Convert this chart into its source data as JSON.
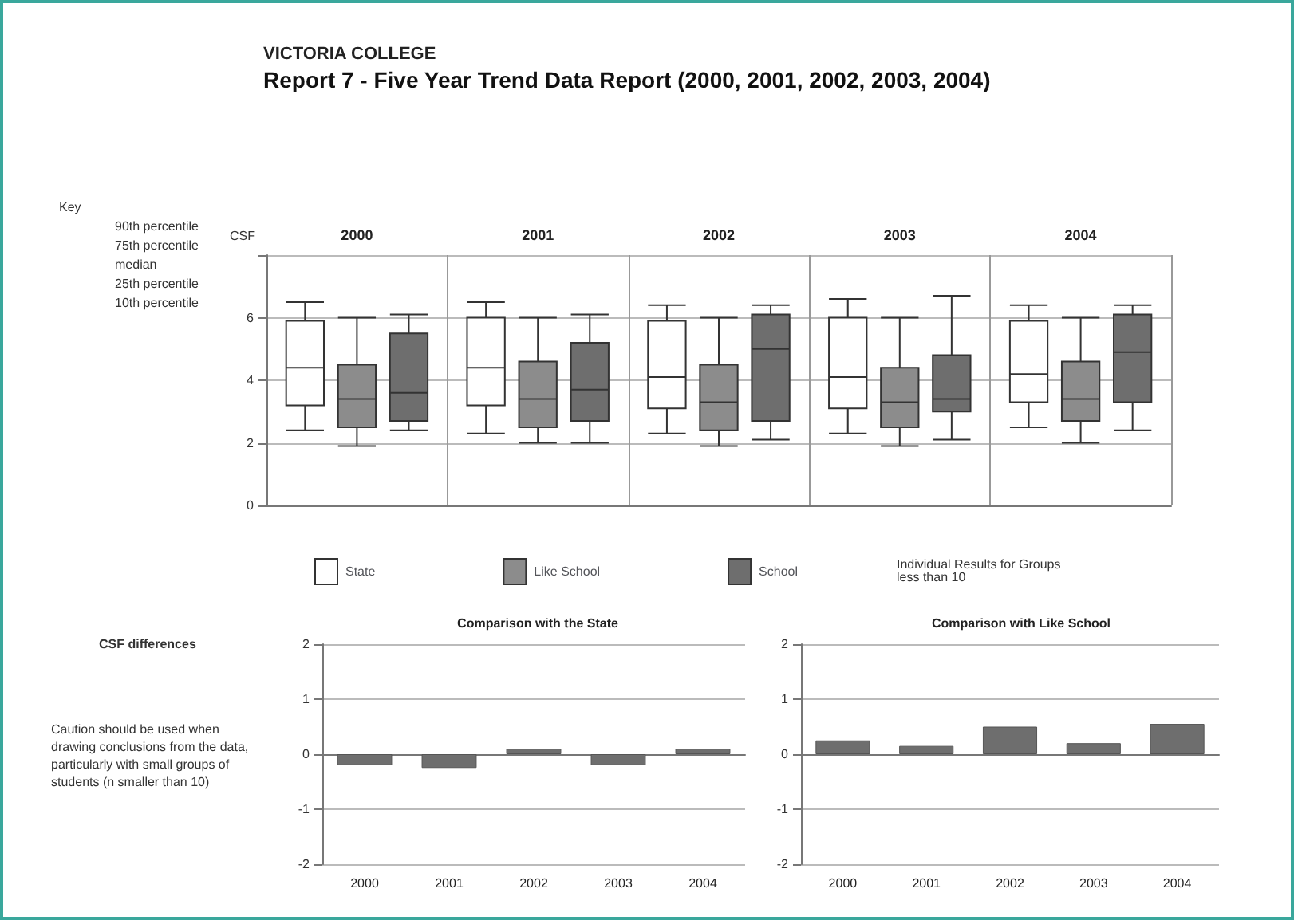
{
  "chart_data": [
    {
      "type": "box",
      "title": "Report 7 - Five Year Trend Data Report (2000, 2001, 2002, 2003, 2004)",
      "subtitle": "VICTORIA COLLEGE",
      "ylabel": "CSF",
      "categories": [
        "2000",
        "2001",
        "2002",
        "2003",
        "2004"
      ],
      "series": [
        {
          "name": "State",
          "color": "#ffffff",
          "boxes": [
            {
              "low": 2.4,
              "q1": 3.2,
              "median": 4.4,
              "q3": 5.9,
              "high": 6.5
            },
            {
              "low": 2.3,
              "q1": 3.2,
              "median": 4.4,
              "q3": 6.0,
              "high": 6.5
            },
            {
              "low": 2.3,
              "q1": 3.1,
              "median": 4.1,
              "q3": 5.9,
              "high": 6.4
            },
            {
              "low": 2.3,
              "q1": 3.1,
              "median": 4.1,
              "q3": 6.0,
              "high": 6.6
            },
            {
              "low": 2.5,
              "q1": 3.3,
              "median": 4.2,
              "q3": 5.9,
              "high": 6.4
            }
          ]
        },
        {
          "name": "Like School",
          "color": "#8c8c8c",
          "boxes": [
            {
              "low": 1.9,
              "q1": 2.5,
              "median": 3.4,
              "q3": 4.5,
              "high": 6.0
            },
            {
              "low": 2.0,
              "q1": 2.5,
              "median": 3.4,
              "q3": 4.6,
              "high": 6.0
            },
            {
              "low": 1.9,
              "q1": 2.4,
              "median": 3.3,
              "q3": 4.5,
              "high": 6.0
            },
            {
              "low": 1.9,
              "q1": 2.5,
              "median": 3.3,
              "q3": 4.4,
              "high": 6.0
            },
            {
              "low": 2.0,
              "q1": 2.7,
              "median": 3.4,
              "q3": 4.6,
              "high": 6.0
            }
          ]
        },
        {
          "name": "School",
          "color": "#6e6e6e",
          "boxes": [
            {
              "low": 2.4,
              "q1": 2.7,
              "median": 3.6,
              "q3": 5.5,
              "high": 6.1
            },
            {
              "low": 2.0,
              "q1": 2.7,
              "median": 3.7,
              "q3": 5.2,
              "high": 6.1
            },
            {
              "low": 2.1,
              "q1": 2.7,
              "median": 5.0,
              "q3": 6.1,
              "high": 6.4
            },
            {
              "low": 2.1,
              "q1": 3.0,
              "median": 3.4,
              "q3": 4.8,
              "high": 6.7
            },
            {
              "low": 2.4,
              "q1": 3.3,
              "median": 4.9,
              "q3": 6.1,
              "high": 6.4
            }
          ]
        }
      ],
      "ylim": [
        0,
        8
      ],
      "yticks": [
        0,
        2,
        4,
        6
      ],
      "grid": "y",
      "legend": "bottom",
      "annotations": [
        "Key",
        "90th percentile",
        "75th percentile",
        "median",
        "25th percentile",
        "10th percentile",
        "Individual Results for Groups less than 10"
      ]
    },
    {
      "type": "bar",
      "title": "Comparison with the State",
      "ylabel": "CSF differences",
      "categories": [
        "2000",
        "2001",
        "2002",
        "2003",
        "2004"
      ],
      "values": [
        -0.2,
        -0.25,
        0.1,
        -0.2,
        0.1
      ],
      "color": "#6e6e6e",
      "ylim": [
        -2,
        2
      ],
      "yticks": [
        -2,
        -1,
        0,
        1,
        2
      ],
      "grid": "y",
      "annotations": [
        "Caution should be used when drawing conclusions from the data, particularly with small groups of students (n smaller than 10)"
      ]
    },
    {
      "type": "bar",
      "title": "Comparison with Like School",
      "categories": [
        "2000",
        "2001",
        "2002",
        "2003",
        "2004"
      ],
      "values": [
        0.25,
        0.15,
        0.5,
        0.2,
        0.55
      ],
      "color": "#6e6e6e",
      "ylim": [
        -2,
        2
      ],
      "yticks": [
        -2,
        -1,
        0,
        1,
        2
      ],
      "grid": "y"
    }
  ]
}
